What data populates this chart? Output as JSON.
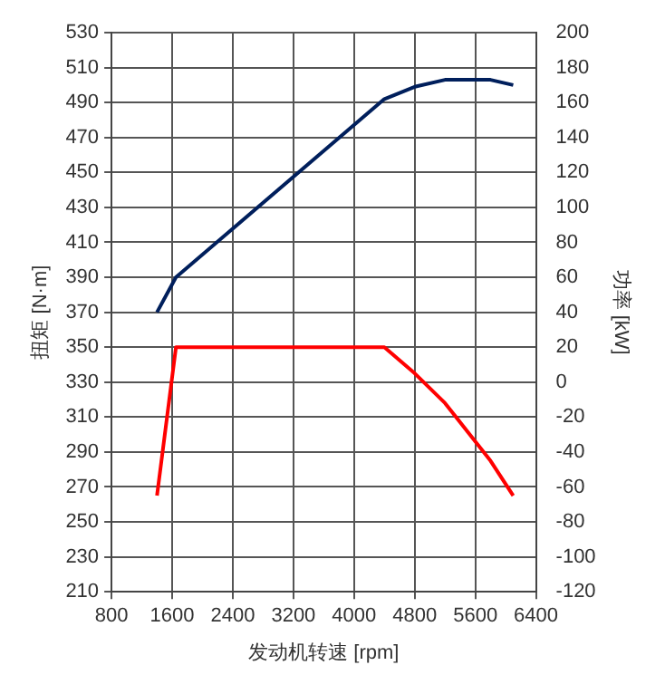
{
  "chart_data": {
    "type": "line",
    "xlabel": "发动机转速 [rpm]",
    "ylabel": "扭矩 [N·m]",
    "y2label": "功率 [kW]",
    "xlim": [
      800,
      6400
    ],
    "xticks": [
      800,
      1600,
      2400,
      3200,
      4000,
      4800,
      5600,
      6400
    ],
    "ylim": [
      210,
      530
    ],
    "yticks": [
      210,
      230,
      250,
      270,
      290,
      310,
      330,
      350,
      370,
      390,
      410,
      430,
      450,
      470,
      490,
      510,
      530
    ],
    "y2lim": [
      -120,
      200
    ],
    "y2ticks": [
      -120,
      -100,
      -80,
      -60,
      -40,
      -20,
      0,
      20,
      40,
      60,
      80,
      100,
      120,
      140,
      160,
      180,
      200
    ],
    "grid": true,
    "legend": false,
    "marker": "none",
    "line_style": "solid",
    "series": [
      {
        "color": "#ff0000",
        "x": [
          1400,
          1650,
          4400,
          4800,
          5200,
          5800,
          6100
        ],
        "values": [
          265,
          350,
          350,
          335,
          318,
          285,
          265
        ]
      },
      {
        "color": "#001f5c",
        "axis": "y2",
        "x": [
          1400,
          1650,
          4400,
          4800,
          5200,
          5800,
          6100
        ],
        "values": [
          40,
          60,
          162,
          169,
          173,
          173,
          170
        ]
      }
    ]
  }
}
